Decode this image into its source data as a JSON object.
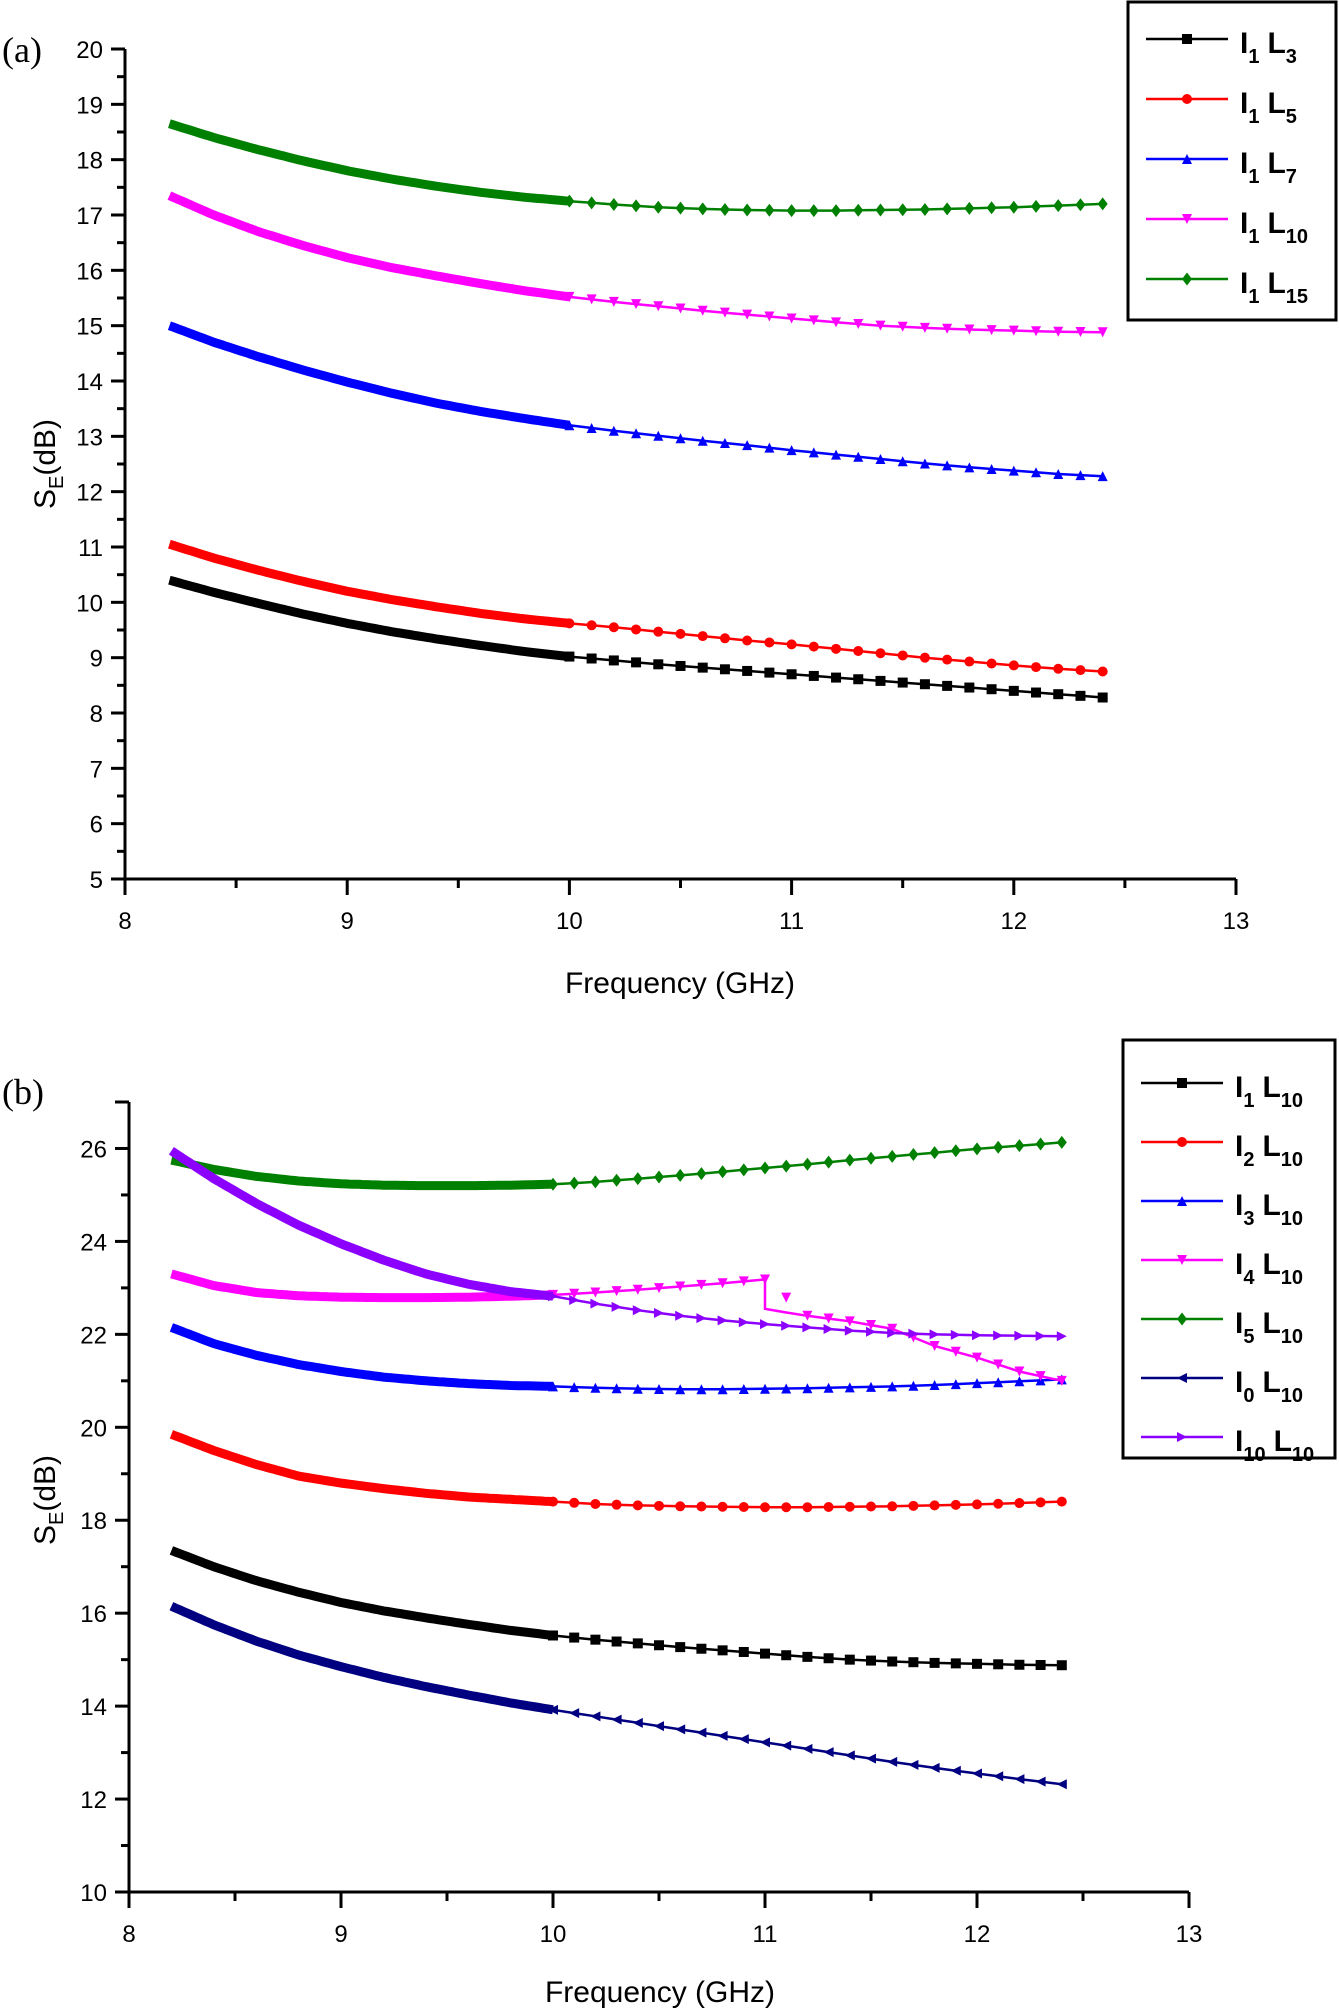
{
  "chart_data": [
    {
      "type": "line",
      "panel_label": "(a)",
      "title": "",
      "xlabel": "Frequency (GHz)",
      "ylabel_main": "S",
      "ylabel_sub": "E",
      "ylabel_rest": "(dB)",
      "xlim": [
        8,
        13
      ],
      "ylim": [
        5,
        20
      ],
      "xticks": [
        8,
        9,
        10,
        11,
        12,
        13
      ],
      "yticks": [
        5,
        6,
        7,
        8,
        9,
        10,
        11,
        12,
        13,
        14,
        15,
        16,
        17,
        18,
        19,
        20
      ],
      "grid": false,
      "legend_position": "top-right",
      "x": [
        8.2,
        8.4,
        8.6,
        8.8,
        9.0,
        9.2,
        9.4,
        9.6,
        9.8,
        10.0,
        10.2,
        10.4,
        10.6,
        10.8,
        11.0,
        11.2,
        11.4,
        11.6,
        11.8,
        12.0,
        12.2,
        12.4
      ],
      "series": [
        {
          "name": "I1 L3",
          "label_main": "I",
          "label_sub1": "1",
          "label_main2": "L",
          "label_sub2": "3",
          "color": "#000000",
          "marker": "square",
          "values": [
            10.4,
            10.18,
            9.98,
            9.79,
            9.62,
            9.47,
            9.34,
            9.22,
            9.11,
            9.02,
            8.95,
            8.88,
            8.82,
            8.76,
            8.7,
            8.64,
            8.58,
            8.52,
            8.46,
            8.4,
            8.34,
            8.28
          ]
        },
        {
          "name": "I1 L5",
          "label_main": "I",
          "label_sub1": "1",
          "label_main2": "L",
          "label_sub2": "5",
          "color": "#ff0000",
          "marker": "circle",
          "values": [
            11.05,
            10.8,
            10.58,
            10.38,
            10.2,
            10.05,
            9.92,
            9.8,
            9.7,
            9.62,
            9.55,
            9.47,
            9.39,
            9.31,
            9.24,
            9.16,
            9.08,
            9.0,
            8.93,
            8.86,
            8.8,
            8.75
          ]
        },
        {
          "name": "I1 L7",
          "label_main": "I",
          "label_sub1": "1",
          "label_main2": "L",
          "label_sub2": "7",
          "color": "#0000ff",
          "marker": "triangle-up",
          "values": [
            15.0,
            14.7,
            14.44,
            14.2,
            13.98,
            13.78,
            13.6,
            13.45,
            13.32,
            13.2,
            13.1,
            13.01,
            12.92,
            12.84,
            12.75,
            12.67,
            12.59,
            12.51,
            12.44,
            12.38,
            12.32,
            12.28
          ]
        },
        {
          "name": "I1 L10",
          "label_main": "I",
          "label_sub1": "1",
          "label_main2": "L",
          "label_sub2": "10",
          "color": "#ff00ff",
          "marker": "triangle-down",
          "values": [
            17.35,
            17.0,
            16.7,
            16.45,
            16.23,
            16.05,
            15.9,
            15.76,
            15.63,
            15.52,
            15.43,
            15.35,
            15.27,
            15.2,
            15.13,
            15.06,
            15.0,
            14.96,
            14.93,
            14.91,
            14.89,
            14.88
          ]
        },
        {
          "name": "I1 L15",
          "label_main": "I",
          "label_sub1": "1",
          "label_main2": "L",
          "label_sub2": "15",
          "color": "#008000",
          "marker": "diamond",
          "values": [
            18.65,
            18.4,
            18.18,
            17.98,
            17.8,
            17.65,
            17.52,
            17.41,
            17.32,
            17.25,
            17.19,
            17.14,
            17.11,
            17.09,
            17.08,
            17.08,
            17.09,
            17.1,
            17.12,
            17.14,
            17.17,
            17.2
          ]
        }
      ]
    },
    {
      "type": "line",
      "panel_label": "(b)",
      "title": "",
      "xlabel": "Frequency (GHz)",
      "ylabel_main": "S",
      "ylabel_sub": "E",
      "ylabel_rest": "(dB)",
      "xlim": [
        8,
        13
      ],
      "ylim": [
        10,
        27
      ],
      "xticks": [
        8,
        9,
        10,
        11,
        12,
        13
      ],
      "yticks": [
        10,
        12,
        14,
        16,
        18,
        20,
        22,
        24,
        26
      ],
      "grid": false,
      "legend_position": "top-right",
      "x": [
        8.2,
        8.4,
        8.6,
        8.8,
        9.0,
        9.2,
        9.4,
        9.6,
        9.8,
        10.0,
        10.2,
        10.4,
        10.6,
        10.8,
        11.0,
        11.2,
        11.4,
        11.6,
        11.8,
        12.0,
        12.2,
        12.4
      ],
      "series": [
        {
          "name": "I1 L10",
          "label_main": "I",
          "label_sub1": "1",
          "label_main2": "L",
          "label_sub2": "10",
          "color": "#000000",
          "marker": "square",
          "values": [
            17.35,
            17.0,
            16.7,
            16.45,
            16.23,
            16.05,
            15.9,
            15.76,
            15.63,
            15.52,
            15.43,
            15.35,
            15.27,
            15.2,
            15.13,
            15.06,
            15.0,
            14.96,
            14.93,
            14.91,
            14.89,
            14.88
          ]
        },
        {
          "name": "I2 L10",
          "label_main": "I",
          "label_sub1": "2",
          "label_main2": "L",
          "label_sub2": "10",
          "color": "#ff0000",
          "marker": "circle",
          "values": [
            19.85,
            19.5,
            19.2,
            18.95,
            18.8,
            18.68,
            18.58,
            18.5,
            18.45,
            18.4,
            18.35,
            18.32,
            18.3,
            18.29,
            18.28,
            18.28,
            18.29,
            18.3,
            18.32,
            18.34,
            18.37,
            18.4
          ]
        },
        {
          "name": "I3 L10",
          "label_main": "I",
          "label_sub1": "3",
          "label_main2": "L",
          "label_sub2": "10",
          "color": "#0000ff",
          "marker": "triangle-up",
          "values": [
            22.15,
            21.8,
            21.55,
            21.35,
            21.2,
            21.08,
            21.0,
            20.94,
            20.9,
            20.88,
            20.85,
            20.83,
            20.82,
            20.82,
            20.83,
            20.84,
            20.86,
            20.88,
            20.91,
            20.95,
            20.99,
            21.03
          ]
        },
        {
          "name": "I4 L10",
          "label_main": "I",
          "label_sub1": "4",
          "label_main2": "L",
          "label_sub2": "10",
          "color": "#ff00ff",
          "marker": "triangle-down",
          "values": [
            23.3,
            23.05,
            22.9,
            22.83,
            22.8,
            22.79,
            22.79,
            22.8,
            22.82,
            22.85,
            22.9,
            22.96,
            23.03,
            23.1,
            23.18,
            22.4,
            22.28,
            22.12,
            21.75,
            21.5,
            21.2,
            21.0
          ],
          "note": "step discontinuity at 11 GHz"
        },
        {
          "name": "I5 L10",
          "label_main": "I",
          "label_sub1": "5",
          "label_main2": "L",
          "label_sub2": "10",
          "color": "#008000",
          "marker": "diamond",
          "values": [
            25.75,
            25.55,
            25.4,
            25.3,
            25.24,
            25.21,
            25.2,
            25.2,
            25.21,
            25.23,
            25.28,
            25.35,
            25.42,
            25.5,
            25.58,
            25.66,
            25.75,
            25.83,
            25.91,
            25.99,
            26.06,
            26.13
          ]
        },
        {
          "name": "I0 L10",
          "label_main": "I",
          "label_sub1": "0",
          "label_main2": "L",
          "label_sub2": "10",
          "color": "#000080",
          "marker": "triangle-left",
          "values": [
            16.15,
            15.75,
            15.4,
            15.1,
            14.85,
            14.62,
            14.42,
            14.24,
            14.07,
            13.92,
            13.78,
            13.64,
            13.5,
            13.36,
            13.22,
            13.08,
            12.94,
            12.8,
            12.67,
            12.55,
            12.43,
            12.32
          ]
        },
        {
          "name": "I10 L10",
          "label_main": "I",
          "label_sub1": "10",
          "label_main2": "L",
          "label_sub2": "10",
          "color": "#8b00ff",
          "marker": "triangle-right",
          "values": [
            25.95,
            25.35,
            24.82,
            24.35,
            23.95,
            23.6,
            23.3,
            23.08,
            22.92,
            22.82,
            22.66,
            22.52,
            22.4,
            22.3,
            22.22,
            22.15,
            22.08,
            22.03,
            22.0,
            21.98,
            21.97,
            21.96
          ]
        }
      ]
    }
  ]
}
